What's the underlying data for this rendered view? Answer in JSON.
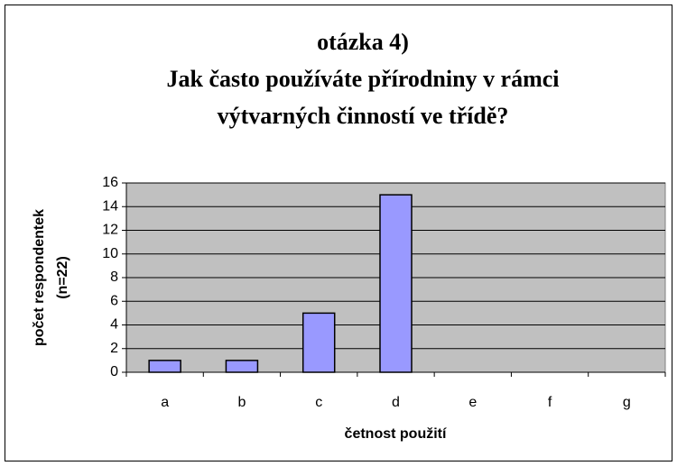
{
  "chart_data": {
    "type": "bar",
    "title": [
      "otázka 4)",
      "Jak často používáte přírodniny v rámci",
      "výtvarných činností ve třídě?"
    ],
    "y_label": [
      "počet respondentek",
      "(n=22)"
    ],
    "x_label": "četnost použití",
    "categories": [
      "a",
      "b",
      "c",
      "d",
      "e",
      "f",
      "g"
    ],
    "values": [
      1,
      1,
      5,
      15,
      0,
      0,
      0
    ],
    "color": "#9999ff",
    "ylim": [
      0,
      16
    ],
    "yticks": [
      0,
      2,
      4,
      6,
      8,
      10,
      12,
      14,
      16
    ],
    "grid": true
  }
}
